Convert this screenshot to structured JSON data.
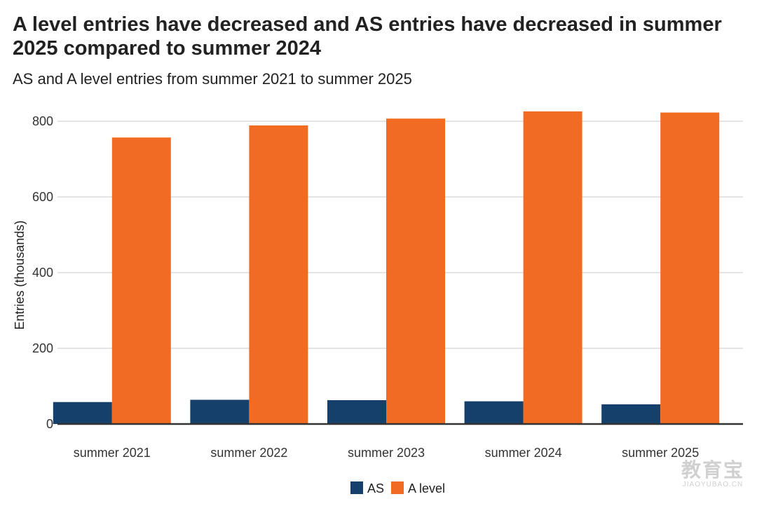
{
  "chart_data": {
    "type": "bar",
    "title": "A level entries have decreased and AS entries have decreased in summer 2025 compared to summer 2024",
    "subtitle": "AS and A level entries from summer 2021 to summer 2025",
    "ylabel": "Entries (thousands)",
    "xlabel": "",
    "ylim": [
      0,
      800
    ],
    "yticks": [
      0,
      200,
      400,
      600,
      800
    ],
    "grid": true,
    "legend_position": "bottom",
    "categories": [
      "summer 2021",
      "summer 2022",
      "summer 2023",
      "summer 2024",
      "summer 2025"
    ],
    "series": [
      {
        "name": "AS",
        "color": "#15406b",
        "values": [
          58,
          64,
          63,
          60,
          52
        ]
      },
      {
        "name": "A level",
        "color": "#f26b22",
        "values": [
          757,
          789,
          807,
          826,
          823
        ]
      }
    ]
  },
  "watermark": {
    "main": "教育宝",
    "sub": "JIAOYUBAO.CN"
  }
}
